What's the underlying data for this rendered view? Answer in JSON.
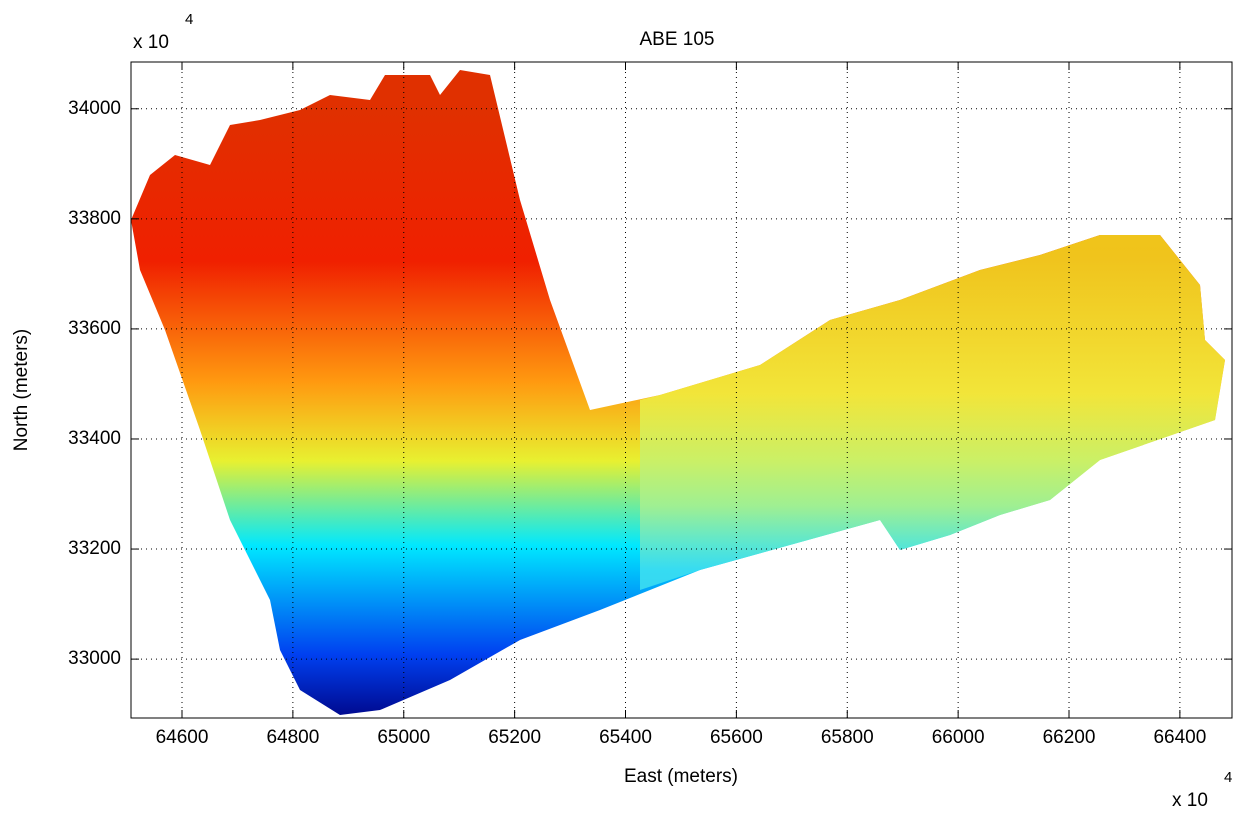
{
  "chart_data": {
    "type": "image",
    "title": "ABE 105",
    "x_label": "East (meters)",
    "y_label": "North (meters)",
    "x_multiplier": {
      "base": "x 10",
      "exponent": "4"
    },
    "y_multiplier": {
      "base": "x 10",
      "exponent": "4"
    },
    "xlim": [
      64508,
      66494
    ],
    "ylim": [
      32893,
      34085
    ],
    "xticks": [
      64600,
      64800,
      65000,
      65200,
      65400,
      65600,
      65800,
      66000,
      66200,
      66400
    ],
    "yticks": [
      33000,
      33200,
      33400,
      33600,
      33800,
      34000
    ],
    "grid": true
  }
}
